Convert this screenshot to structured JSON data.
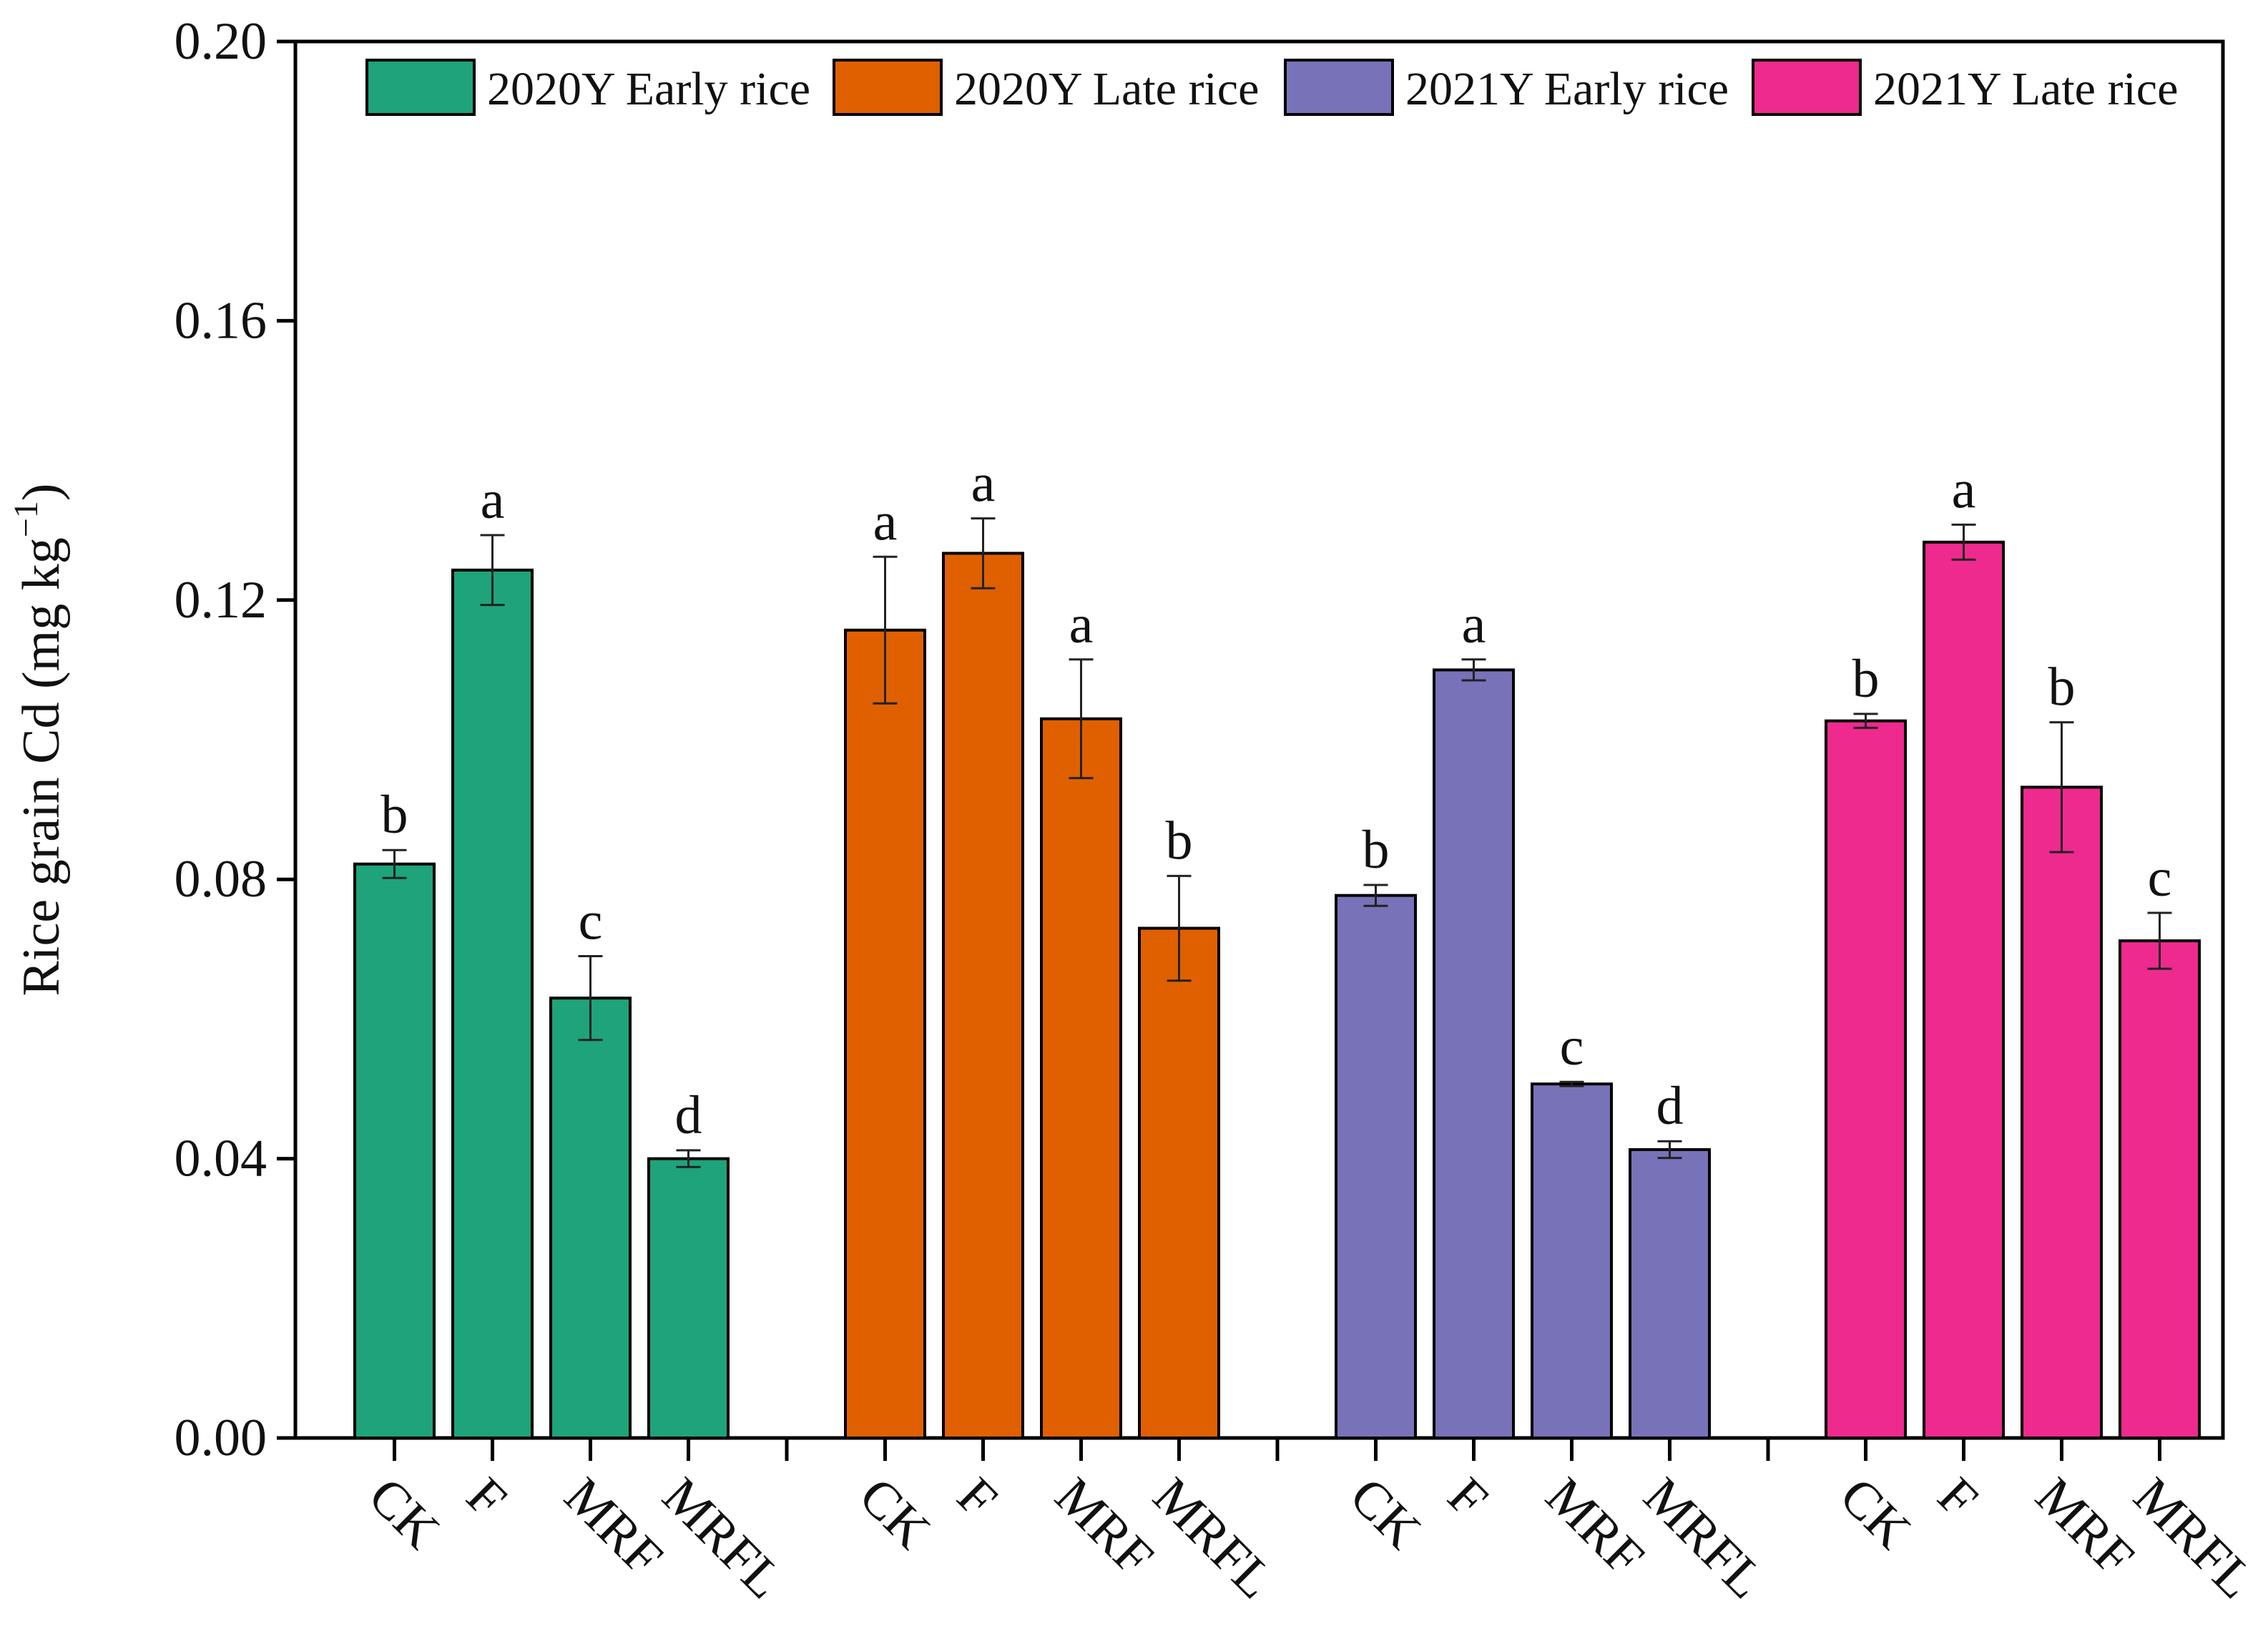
{
  "chart_data": {
    "type": "bar",
    "title": "",
    "xlabel": "",
    "ylabel_main": "Rice grain Cd (mg kg",
    "ylabel_sup": "−1",
    "ylabel_close": ")",
    "ylim": [
      0,
      0.2
    ],
    "yticks": [
      "0.00",
      "0.04",
      "0.08",
      "0.12",
      "0.16",
      "0.20"
    ],
    "ytick_values": [
      0,
      0.04,
      0.08,
      0.12,
      0.16,
      0.2
    ],
    "categories": [
      "CK",
      "F",
      "MRF",
      "MRFL"
    ],
    "legend_position": "top",
    "series": [
      {
        "name": "2020Y Early rice",
        "color": "#1fa37a",
        "values": [
          0.0822,
          0.1243,
          0.063,
          0.04
        ],
        "errors": [
          0.002,
          0.005,
          0.006,
          0.0012
        ],
        "letters": [
          "b",
          "a",
          "c",
          "d"
        ]
      },
      {
        "name": "2020Y Late rice",
        "color": "#e06000",
        "values": [
          0.1157,
          0.1267,
          0.103,
          0.073
        ],
        "errors": [
          0.0105,
          0.005,
          0.0085,
          0.0075
        ],
        "letters": [
          "a",
          "a",
          "a",
          "b"
        ]
      },
      {
        "name": "2021Y Early rice",
        "color": "#7873b8",
        "values": [
          0.0777,
          0.11,
          0.0507,
          0.0413
        ],
        "errors": [
          0.0015,
          0.0015,
          0.0003,
          0.0012
        ],
        "letters": [
          "b",
          "a",
          "c",
          "d"
        ]
      },
      {
        "name": "2021Y Late rice",
        "color": "#ee2a8e",
        "values": [
          0.1027,
          0.1283,
          0.0932,
          0.0712
        ],
        "errors": [
          0.001,
          0.0025,
          0.0093,
          0.004
        ],
        "letters": [
          "b",
          "a",
          "b",
          "c"
        ]
      }
    ]
  }
}
